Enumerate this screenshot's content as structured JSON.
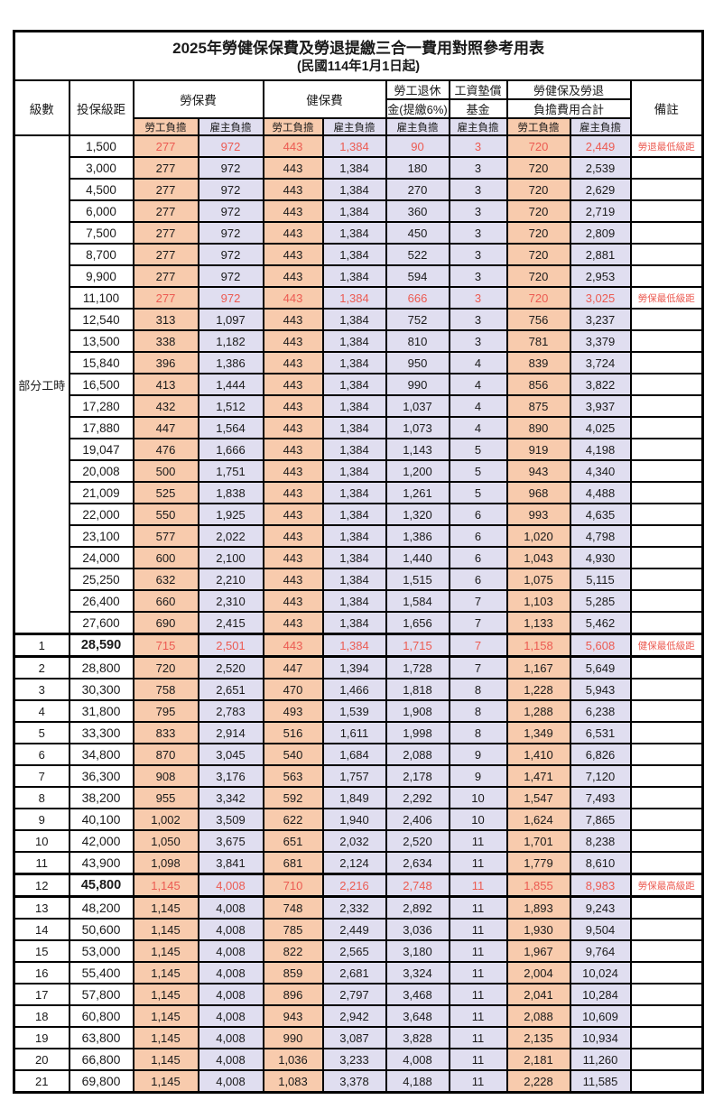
{
  "title": "2025年勞健保保費及勞退提繳三合一費用對照參考用表",
  "subtitle": "(民國114年1月1日起)",
  "colors": {
    "employee_col_bg": "#F8CBAD",
    "employer_col_bg": "#E0DEF0",
    "highlight_text": "#EC5B52",
    "border": "#000000"
  },
  "header": {
    "level": "級數",
    "salary": "投保級距",
    "labor_fee": "勞保費",
    "health_fee": "健保費",
    "pension_line1": "勞工退休",
    "pension_line2": "金(提繳6%)",
    "wage_fund_line1": "工資墊償",
    "wage_fund_line2": "基金",
    "total_line1": "勞健保及勞退",
    "total_line2": "負擔費用合計",
    "note": "備註",
    "employee": "勞工負擔",
    "employer": "雇主負擔"
  },
  "table": {
    "value_column_pattern": [
      "orange",
      "lav",
      "orange",
      "lav",
      "lav",
      "lav",
      "orange",
      "lav"
    ],
    "rows": [
      {
        "group": "部分工時",
        "group_span": 23,
        "salary": "1,500",
        "values": [
          "277",
          "972",
          "443",
          "1,384",
          "90",
          "3",
          "720",
          "2,449"
        ],
        "note": "勞退最低級距",
        "red": true
      },
      {
        "salary": "3,000",
        "values": [
          "277",
          "972",
          "443",
          "1,384",
          "180",
          "3",
          "720",
          "2,539"
        ],
        "note": ""
      },
      {
        "salary": "4,500",
        "values": [
          "277",
          "972",
          "443",
          "1,384",
          "270",
          "3",
          "720",
          "2,629"
        ],
        "note": ""
      },
      {
        "salary": "6,000",
        "values": [
          "277",
          "972",
          "443",
          "1,384",
          "360",
          "3",
          "720",
          "2,719"
        ],
        "note": ""
      },
      {
        "salary": "7,500",
        "values": [
          "277",
          "972",
          "443",
          "1,384",
          "450",
          "3",
          "720",
          "2,809"
        ],
        "note": ""
      },
      {
        "salary": "8,700",
        "values": [
          "277",
          "972",
          "443",
          "1,384",
          "522",
          "3",
          "720",
          "2,881"
        ],
        "note": ""
      },
      {
        "salary": "9,900",
        "values": [
          "277",
          "972",
          "443",
          "1,384",
          "594",
          "3",
          "720",
          "2,953"
        ],
        "note": ""
      },
      {
        "salary": "11,100",
        "values": [
          "277",
          "972",
          "443",
          "1,384",
          "666",
          "3",
          "720",
          "3,025"
        ],
        "note": "勞保最低級距",
        "red": true
      },
      {
        "salary": "12,540",
        "values": [
          "313",
          "1,097",
          "443",
          "1,384",
          "752",
          "3",
          "756",
          "3,237"
        ],
        "note": ""
      },
      {
        "salary": "13,500",
        "values": [
          "338",
          "1,182",
          "443",
          "1,384",
          "810",
          "3",
          "781",
          "3,379"
        ],
        "note": ""
      },
      {
        "salary": "15,840",
        "values": [
          "396",
          "1,386",
          "443",
          "1,384",
          "950",
          "4",
          "839",
          "3,724"
        ],
        "note": ""
      },
      {
        "salary": "16,500",
        "values": [
          "413",
          "1,444",
          "443",
          "1,384",
          "990",
          "4",
          "856",
          "3,822"
        ],
        "note": ""
      },
      {
        "salary": "17,280",
        "values": [
          "432",
          "1,512",
          "443",
          "1,384",
          "1,037",
          "4",
          "875",
          "3,937"
        ],
        "note": ""
      },
      {
        "salary": "17,880",
        "values": [
          "447",
          "1,564",
          "443",
          "1,384",
          "1,073",
          "4",
          "890",
          "4,025"
        ],
        "note": ""
      },
      {
        "salary": "19,047",
        "values": [
          "476",
          "1,666",
          "443",
          "1,384",
          "1,143",
          "5",
          "919",
          "4,198"
        ],
        "note": ""
      },
      {
        "salary": "20,008",
        "values": [
          "500",
          "1,751",
          "443",
          "1,384",
          "1,200",
          "5",
          "943",
          "4,340"
        ],
        "note": ""
      },
      {
        "salary": "21,009",
        "values": [
          "525",
          "1,838",
          "443",
          "1,384",
          "1,261",
          "5",
          "968",
          "4,488"
        ],
        "note": ""
      },
      {
        "salary": "22,000",
        "values": [
          "550",
          "1,925",
          "443",
          "1,384",
          "1,320",
          "6",
          "993",
          "4,635"
        ],
        "note": ""
      },
      {
        "salary": "23,100",
        "values": [
          "577",
          "2,022",
          "443",
          "1,384",
          "1,386",
          "6",
          "1,020",
          "4,798"
        ],
        "note": ""
      },
      {
        "salary": "24,000",
        "values": [
          "600",
          "2,100",
          "443",
          "1,384",
          "1,440",
          "6",
          "1,043",
          "4,930"
        ],
        "note": ""
      },
      {
        "salary": "25,250",
        "values": [
          "632",
          "2,210",
          "443",
          "1,384",
          "1,515",
          "6",
          "1,075",
          "5,115"
        ],
        "note": ""
      },
      {
        "salary": "26,400",
        "values": [
          "660",
          "2,310",
          "443",
          "1,384",
          "1,584",
          "7",
          "1,103",
          "5,285"
        ],
        "note": ""
      },
      {
        "salary": "27,600",
        "values": [
          "690",
          "2,415",
          "443",
          "1,384",
          "1,656",
          "7",
          "1,133",
          "5,462"
        ],
        "note": ""
      },
      {
        "level": "1",
        "salary": "28,590",
        "values": [
          "715",
          "2,501",
          "443",
          "1,384",
          "1,715",
          "7",
          "1,158",
          "5,608"
        ],
        "note": "健保最低級距",
        "red": true,
        "thick": true
      },
      {
        "level": "2",
        "salary": "28,800",
        "values": [
          "720",
          "2,520",
          "447",
          "1,394",
          "1,728",
          "7",
          "1,167",
          "5,649"
        ],
        "note": ""
      },
      {
        "level": "3",
        "salary": "30,300",
        "values": [
          "758",
          "2,651",
          "470",
          "1,466",
          "1,818",
          "8",
          "1,228",
          "5,943"
        ],
        "note": ""
      },
      {
        "level": "4",
        "salary": "31,800",
        "values": [
          "795",
          "2,783",
          "493",
          "1,539",
          "1,908",
          "8",
          "1,288",
          "6,238"
        ],
        "note": ""
      },
      {
        "level": "5",
        "salary": "33,300",
        "values": [
          "833",
          "2,914",
          "516",
          "1,611",
          "1,998",
          "8",
          "1,349",
          "6,531"
        ],
        "note": ""
      },
      {
        "level": "6",
        "salary": "34,800",
        "values": [
          "870",
          "3,045",
          "540",
          "1,684",
          "2,088",
          "9",
          "1,410",
          "6,826"
        ],
        "note": ""
      },
      {
        "level": "7",
        "salary": "36,300",
        "values": [
          "908",
          "3,176",
          "563",
          "1,757",
          "2,178",
          "9",
          "1,471",
          "7,120"
        ],
        "note": ""
      },
      {
        "level": "8",
        "salary": "38,200",
        "values": [
          "955",
          "3,342",
          "592",
          "1,849",
          "2,292",
          "10",
          "1,547",
          "7,493"
        ],
        "note": ""
      },
      {
        "level": "9",
        "salary": "40,100",
        "values": [
          "1,002",
          "3,509",
          "622",
          "1,940",
          "2,406",
          "10",
          "1,624",
          "7,865"
        ],
        "note": ""
      },
      {
        "level": "10",
        "salary": "42,000",
        "values": [
          "1,050",
          "3,675",
          "651",
          "2,032",
          "2,520",
          "11",
          "1,701",
          "8,238"
        ],
        "note": ""
      },
      {
        "level": "11",
        "salary": "43,900",
        "values": [
          "1,098",
          "3,841",
          "681",
          "2,124",
          "2,634",
          "11",
          "1,779",
          "8,610"
        ],
        "note": ""
      },
      {
        "level": "12",
        "salary": "45,800",
        "values": [
          "1,145",
          "4,008",
          "710",
          "2,216",
          "2,748",
          "11",
          "1,855",
          "8,983"
        ],
        "note": "勞保最高級距",
        "red": true,
        "thick": true
      },
      {
        "level": "13",
        "salary": "48,200",
        "values": [
          "1,145",
          "4,008",
          "748",
          "2,332",
          "2,892",
          "11",
          "1,893",
          "9,243"
        ],
        "note": ""
      },
      {
        "level": "14",
        "salary": "50,600",
        "values": [
          "1,145",
          "4,008",
          "785",
          "2,449",
          "3,036",
          "11",
          "1,930",
          "9,504"
        ],
        "note": ""
      },
      {
        "level": "15",
        "salary": "53,000",
        "values": [
          "1,145",
          "4,008",
          "822",
          "2,565",
          "3,180",
          "11",
          "1,967",
          "9,764"
        ],
        "note": ""
      },
      {
        "level": "16",
        "salary": "55,400",
        "values": [
          "1,145",
          "4,008",
          "859",
          "2,681",
          "3,324",
          "11",
          "2,004",
          "10,024"
        ],
        "note": ""
      },
      {
        "level": "17",
        "salary": "57,800",
        "values": [
          "1,145",
          "4,008",
          "896",
          "2,797",
          "3,468",
          "11",
          "2,041",
          "10,284"
        ],
        "note": ""
      },
      {
        "level": "18",
        "salary": "60,800",
        "values": [
          "1,145",
          "4,008",
          "943",
          "2,942",
          "3,648",
          "11",
          "2,088",
          "10,609"
        ],
        "note": ""
      },
      {
        "level": "19",
        "salary": "63,800",
        "values": [
          "1,145",
          "4,008",
          "990",
          "3,087",
          "3,828",
          "11",
          "2,135",
          "10,934"
        ],
        "note": ""
      },
      {
        "level": "20",
        "salary": "66,800",
        "values": [
          "1,145",
          "4,008",
          "1,036",
          "3,233",
          "4,008",
          "11",
          "2,181",
          "11,260"
        ],
        "note": ""
      },
      {
        "level": "21",
        "salary": "69,800",
        "values": [
          "1,145",
          "4,008",
          "1,083",
          "3,378",
          "4,188",
          "11",
          "2,228",
          "11,585"
        ],
        "note": ""
      }
    ]
  }
}
